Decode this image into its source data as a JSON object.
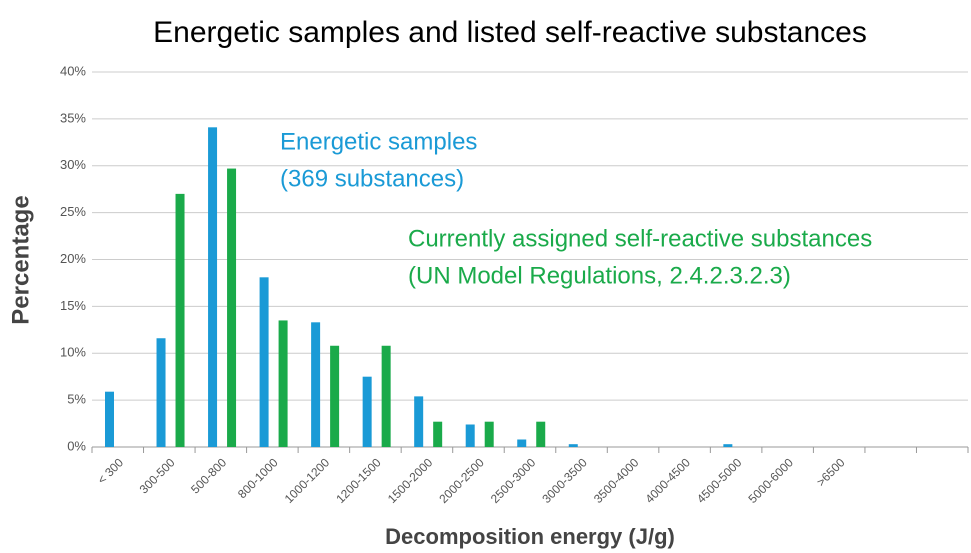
{
  "chart_data": {
    "type": "bar",
    "title": "Energetic samples and listed self-reactive substances",
    "x_label": "Decomposition energy (J/g)",
    "y_label": "Percentage",
    "categories": [
      "< 300",
      "300-500",
      "500-800",
      "800-1000",
      "1000-1200",
      "1200-1500",
      "1500-2000",
      "2000-2500",
      "2500-3000",
      "3000-3500",
      "3500-4000",
      "4000-4500",
      "4500-5000",
      "5000-6000",
      ">6500",
      null,
      null
    ],
    "series": [
      {
        "name": "Energetic samples",
        "color": "#1a9ad6",
        "values": [
          5.9,
          11.6,
          34.1,
          18.1,
          13.3,
          7.5,
          5.4,
          2.4,
          0.8,
          0.3,
          0,
          0,
          0.3,
          0,
          0,
          null,
          null
        ]
      },
      {
        "name": "Currently assigned self-reactive substances",
        "color": "#1aaa4a",
        "values": [
          0,
          27.0,
          29.7,
          13.5,
          10.8,
          10.8,
          2.7,
          2.7,
          2.7,
          0,
          0,
          0,
          0,
          0,
          0,
          null,
          null
        ]
      }
    ],
    "annotations": [
      {
        "lines": [
          "Energetic samples",
          "(369 substances)"
        ],
        "color": "#1a9ad6"
      },
      {
        "lines": [
          "Currently assigned self-reactive  substances",
          "(UN Model Regulations, 2.4.2.3.2.3)"
        ],
        "color": "#1aaa4a"
      }
    ],
    "ylim": [
      0,
      40
    ],
    "yticks": [
      {
        "value": 0,
        "label": "0%"
      },
      {
        "value": 5,
        "label": "5%"
      },
      {
        "value": 10,
        "label": "10%"
      },
      {
        "value": 15,
        "label": "15%"
      },
      {
        "value": 20,
        "label": "20%"
      },
      {
        "value": 25,
        "label": "25%"
      },
      {
        "value": 30,
        "label": "30%"
      },
      {
        "value": 35,
        "label": "35%"
      },
      {
        "value": 40,
        "label": "40%"
      }
    ],
    "grid": true
  }
}
